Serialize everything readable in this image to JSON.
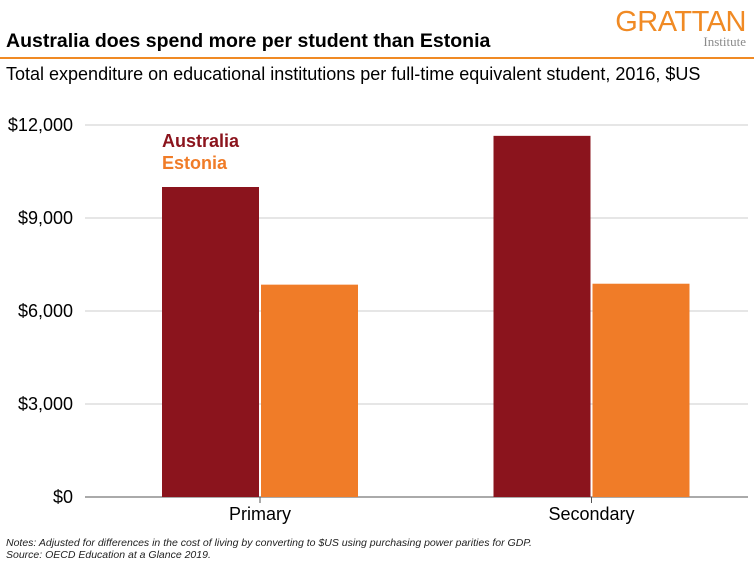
{
  "header": {
    "title": "Australia does spend more per student than Estonia",
    "logo_main": "GRATTAN",
    "logo_sub": "Institute"
  },
  "subtitle": "Total expenditure on educational institutions per full-time equivalent student, 2016, $US",
  "notes": {
    "line1": "Notes: Adjusted for differences in the cost of living by converting to $US using purchasing power parities for GDP.",
    "line2": "Source: OECD Education at a Glance 2019."
  },
  "colors": {
    "australia": "#8b141d",
    "estonia": "#f07c28",
    "brand": "#f08a24",
    "grid": "#cccccc",
    "axis": "#555555"
  },
  "chart_data": {
    "type": "bar",
    "title": "Australia does spend more per student than Estonia",
    "subtitle": "Total expenditure on educational institutions per full-time equivalent student, 2016, $US",
    "categories": [
      "Primary",
      "Secondary"
    ],
    "series": [
      {
        "name": "Australia",
        "values": [
          10000,
          11650
        ],
        "color": "#8b141d"
      },
      {
        "name": "Estonia",
        "values": [
          6850,
          6880
        ],
        "color": "#f07c28"
      }
    ],
    "ylim": [
      0,
      12000
    ],
    "yticks": [
      0,
      3000,
      6000,
      9000,
      12000
    ],
    "ytick_labels": [
      "$0",
      "$3,000",
      "$6,000",
      "$9,000",
      "$12,000"
    ],
    "xlabel": "",
    "ylabel": "",
    "grid": true,
    "legend_placement": "top-left"
  }
}
